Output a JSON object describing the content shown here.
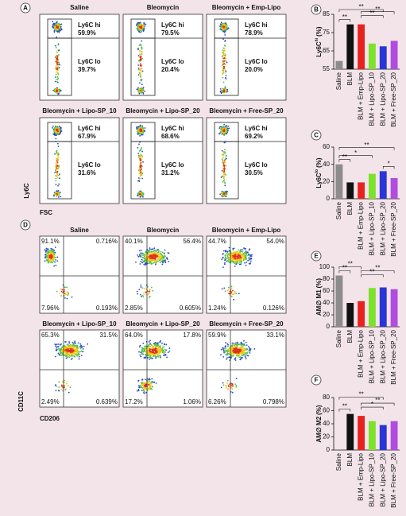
{
  "panel_labels": [
    "A",
    "B",
    "C",
    "D",
    "E",
    "F"
  ],
  "flow_a": {
    "y_label": "Ly6C",
    "x_label": "FSC",
    "plots": [
      {
        "title": "Saline",
        "gates": [
          {
            "label": "Ly6C hi",
            "value": "59.9%"
          },
          {
            "label": "Ly6C lo",
            "value": "39.7%"
          }
        ]
      },
      {
        "title": "Bleomycin",
        "gates": [
          {
            "label": "Ly6C hi",
            "value": "79.5%"
          },
          {
            "label": "Ly6C lo",
            "value": "20.4%"
          }
        ]
      },
      {
        "title": "Bleomycin + Emp-Lipo",
        "gates": [
          {
            "label": "Ly6C hi",
            "value": "78.9%"
          },
          {
            "label": "Ly6C lo",
            "value": "20.0%"
          }
        ]
      },
      {
        "title": "Bleomycin + Lipo-SP_10",
        "gates": [
          {
            "label": "Ly6C hi",
            "value": "67.9%"
          },
          {
            "label": "Ly6C lo",
            "value": "31.6%"
          }
        ]
      },
      {
        "title": "Bleomycin + Lipo-SP_20",
        "gates": [
          {
            "label": "Ly6C hi",
            "value": "68.6%"
          },
          {
            "label": "Ly6C lo",
            "value": "31.2%"
          }
        ]
      },
      {
        "title": "Bleomycin + Free-SP_20",
        "gates": [
          {
            "label": "Ly6C hi",
            "value": "69.2%"
          },
          {
            "label": "Ly6C lo",
            "value": "30.5%"
          }
        ]
      }
    ]
  },
  "flow_d": {
    "y_label": "CD11C",
    "x_label": "CD206",
    "plots": [
      {
        "title": "Saline",
        "quadrants": [
          "91.1%",
          "0.716%",
          "7.96%",
          "0.193%"
        ]
      },
      {
        "title": "Bleomycin",
        "quadrants": [
          "40.1%",
          "56.4%",
          "2.85%",
          "0.605%"
        ]
      },
      {
        "title": "Bleomycin + Emp-Lipo",
        "quadrants": [
          "44.7%",
          "54.0%",
          "1.24%",
          "0.126%"
        ]
      },
      {
        "title": "Bleomycin + Lipo-SP_10",
        "quadrants": [
          "65.3%",
          "31.5%",
          "2.49%",
          "0.639%"
        ]
      },
      {
        "title": "Bleomycin + Lipo-SP_20",
        "quadrants": [
          "64.0%",
          "17.8%",
          "17.2%",
          "1.06%"
        ]
      },
      {
        "title": "Bleomycin + Free-SP_20",
        "quadrants": [
          "59.9%",
          "33.1%",
          "6.26%",
          "0.798%"
        ]
      }
    ]
  },
  "chart_data": [
    {
      "type": "bar",
      "ylabel": "Ly6C",
      "ylabel_sup": "hi",
      "ylabel_unit": "(%)",
      "categories": [
        "Saline",
        "BLM",
        "BLM + Emp-Lipo",
        "BLM + Lipo-SP_10",
        "BLM + Lipo-SP_20",
        "BLM + Free-SP_20"
      ],
      "values": [
        59.5,
        79.5,
        79.5,
        69,
        67.5,
        70.5
      ],
      "colors": [
        "#8c8c8c",
        "#111111",
        "#e8221e",
        "#7ee12b",
        "#2a35d6",
        "#b24be0"
      ],
      "ylim": [
        55,
        85
      ],
      "yticks": [
        55,
        65,
        75,
        85
      ],
      "annotations": [
        "**",
        "**",
        "**",
        "**"
      ]
    },
    {
      "type": "bar",
      "ylabel": "Ly6C",
      "ylabel_sup": "lo",
      "ylabel_unit": "(%)",
      "categories": [
        "Saline",
        "BLM",
        "BLM + Emp-Lipo",
        "BLM + Lipo-SP_10",
        "BLM + Lipo-SP_20",
        "BLM + Free-SP_20"
      ],
      "values": [
        40,
        19,
        19,
        29,
        32,
        24
      ],
      "colors": [
        "#8c8c8c",
        "#111111",
        "#e8221e",
        "#7ee12b",
        "#2a35d6",
        "#b24be0"
      ],
      "ylim": [
        0,
        60
      ],
      "yticks": [
        0,
        20,
        40,
        60
      ],
      "annotations": [
        "**",
        "*",
        "**",
        "*"
      ]
    },
    {
      "type": "bar",
      "ylabel": "AM∅ M1",
      "ylabel_unit": "(%)",
      "categories": [
        "Saline",
        "BLM",
        "BLM + Emp-Lipo",
        "BLM + Lipo-SP_10",
        "BLM + Lipo-SP_20",
        "BLM + Free-SP_20"
      ],
      "values": [
        86,
        40,
        43,
        65,
        66,
        63
      ],
      "colors": [
        "#8c8c8c",
        "#111111",
        "#e8221e",
        "#7ee12b",
        "#2a35d6",
        "#b24be0"
      ],
      "ylim": [
        0,
        100
      ],
      "yticks": [
        0,
        20,
        40,
        60,
        80,
        100
      ],
      "annotations": [
        "**",
        "**",
        "**",
        "**"
      ]
    },
    {
      "type": "bar",
      "ylabel": "AM∅ M2",
      "ylabel_unit": "(%)",
      "categories": [
        "Saline",
        "BLM",
        "BLM + Emp-Lipo",
        "BLM + Lipo-SP_10",
        "BLM + Lipo-SP_20",
        "BLM + Free-SP_20"
      ],
      "values": [
        1,
        55,
        52,
        44,
        38,
        44
      ],
      "colors": [
        "#8c8c8c",
        "#111111",
        "#e8221e",
        "#7ee12b",
        "#2a35d6",
        "#b24be0"
      ],
      "ylim": [
        0,
        80
      ],
      "yticks": [
        0,
        20,
        40,
        60,
        80
      ],
      "annotations": [
        "**",
        "**",
        "*",
        "**"
      ]
    }
  ]
}
